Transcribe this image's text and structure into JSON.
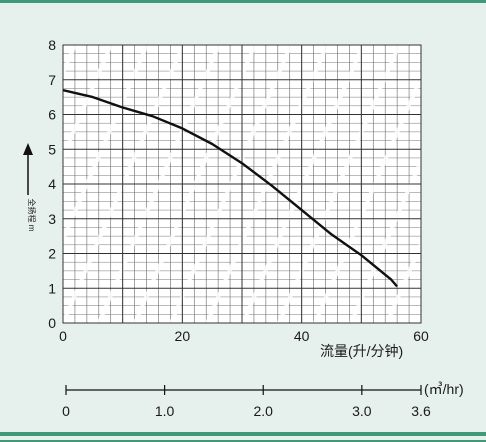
{
  "chart_data": {
    "type": "line",
    "title": "",
    "xlabel": "流量(升/分钟)",
    "ylabel": "全扬程 m",
    "xlim": [
      0,
      60
    ],
    "ylim": [
      0,
      8
    ],
    "x_ticks": [
      "0",
      "20",
      "40",
      "60"
    ],
    "y_ticks": [
      "0",
      "1",
      "2",
      "3",
      "4",
      "5",
      "6",
      "7",
      "8"
    ],
    "grid": true,
    "series": [
      {
        "x": [
          0,
          5,
          10,
          15,
          20,
          25,
          30,
          35,
          40,
          45,
          50,
          55,
          56
        ],
        "y": [
          6.7,
          6.5,
          6.2,
          5.95,
          5.6,
          5.15,
          4.6,
          3.95,
          3.25,
          2.55,
          1.95,
          1.25,
          1.05
        ],
        "color": "#111111"
      }
    ],
    "secondary_axis": {
      "unit": "(㎥/hr)",
      "ticks": [
        "0",
        "1.0",
        "2.0",
        "3.0",
        "3.6"
      ],
      "values": [
        0,
        1.0,
        2.0,
        3.0,
        3.6
      ],
      "range": [
        0,
        3.6
      ]
    }
  },
  "colors": {
    "background": "#e6f0ec",
    "frame": "#3f9a7a",
    "plot_background": "#ffffff",
    "grid": "#555555",
    "curve": "#111111"
  }
}
